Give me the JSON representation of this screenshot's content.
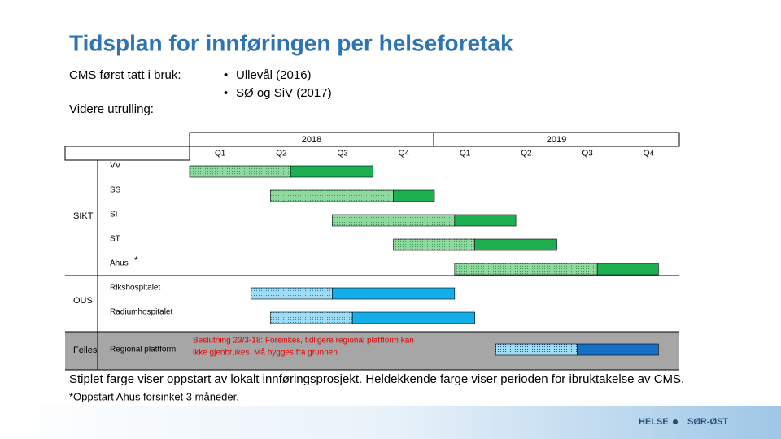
{
  "title": "Tidsplan for innføringen per helseforetak",
  "intro": {
    "cms_label": "CMS først tatt i bruk:",
    "bullets": [
      "Ullevål (2016)",
      "SØ og SiV (2017)"
    ],
    "rollout_label": "Videre utrulling:"
  },
  "gantt": {
    "years": [
      "2018",
      "2019"
    ],
    "quarters": [
      "Q1",
      "Q2",
      "Q3",
      "Q4",
      "Q1",
      "Q2",
      "Q3",
      "Q4"
    ],
    "groups": [
      {
        "name": "SIKT",
        "rows": [
          {
            "name": "VV",
            "pilot": [
              0,
              1.65
            ],
            "live": [
              1.65,
              3
            ]
          },
          {
            "name": "SS",
            "pilot": [
              1.32,
              3.33
            ],
            "live": [
              3.33,
              4
            ]
          },
          {
            "name": "SI",
            "pilot": [
              2.33,
              4.33
            ],
            "live": [
              4.33,
              5.33
            ]
          },
          {
            "name": "ST",
            "pilot": [
              3.33,
              4.66
            ],
            "live": [
              4.66,
              6
            ]
          },
          {
            "name": "Ahus",
            "marker": "*",
            "pilot": [
              4.33,
              6.66
            ],
            "live": [
              6.66,
              7.66
            ]
          }
        ]
      },
      {
        "name": "OUS",
        "rows": [
          {
            "name": "Rikshospitalet",
            "pilot": [
              1,
              2.33
            ],
            "live": [
              2.33,
              4.33
            ]
          },
          {
            "name": "Radiumhospitalet",
            "pilot": [
              1.32,
              2.66
            ],
            "live": [
              2.66,
              4.66
            ]
          }
        ]
      },
      {
        "name": "Felles",
        "rows": [
          {
            "name": "Regional plattform",
            "pilot": [
              5,
              6.33
            ],
            "live": [
              6.33,
              7.66
            ],
            "note": [
              "Beslutning 23/3-18: Forsinkes, tidligere regional plattform kan",
              "ikke gjenbrukes. Må bygges fra grunnen"
            ]
          }
        ]
      }
    ]
  },
  "legend_text": "Stiplet farge viser oppstart av lokalt innføringsprosjekt. Heldekkende farge viser perioden for ibruktakelse av CMS.",
  "footnote": "*Oppstart Ahus forsinket 3 måneder.",
  "logo": [
    "HELSE",
    "SØR-ØST"
  ]
}
